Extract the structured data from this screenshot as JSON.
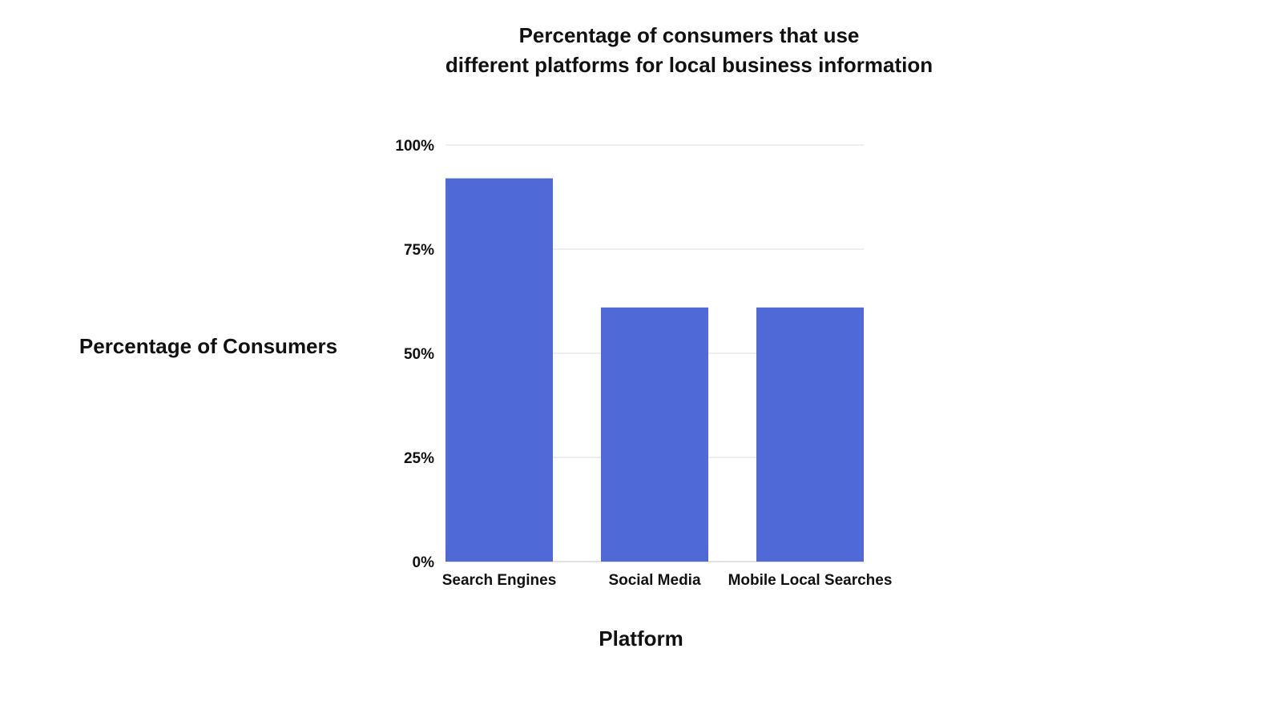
{
  "chart_data": {
    "type": "bar",
    "title_lines": [
      "Percentage of consumers that use",
      "different platforms for local business information"
    ],
    "xlabel": "Platform",
    "ylabel": "Percentage of Consumers",
    "categories": [
      "Search Engines",
      "Social Media",
      "Mobile Local Searches"
    ],
    "values": [
      92,
      61,
      61
    ],
    "ylim": [
      0,
      100
    ],
    "yticks": [
      0,
      25,
      50,
      75,
      100
    ],
    "ytick_labels": [
      "0%",
      "25%",
      "50%",
      "75%",
      "100%"
    ],
    "grid": true,
    "legend": "none",
    "colors": {
      "bar": "#4f69d6",
      "grid": "#e4e4e4",
      "axis": "#cfcfcf"
    }
  }
}
